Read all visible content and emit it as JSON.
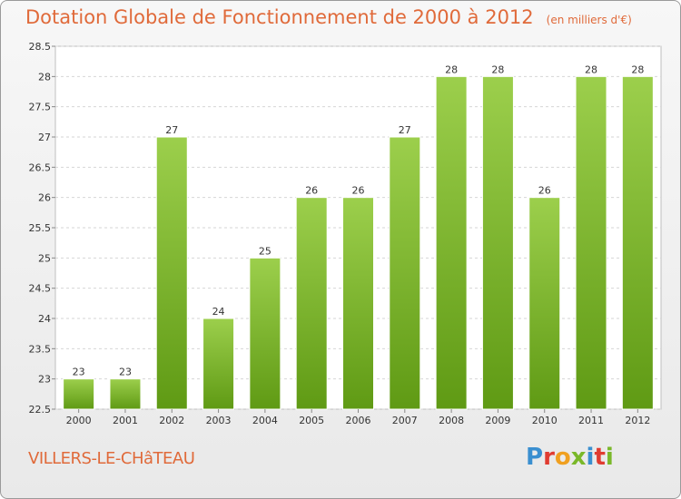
{
  "header": {
    "title": "Dotation Globale de Fonctionnement de 2000 à 2012",
    "unit": "(en milliers d'€)"
  },
  "footer": {
    "commune": "VILLERS-LE-CHâTEAU",
    "logo_text": "Proxiti",
    "logo_colors": [
      "#3a8fd0",
      "#e03c31",
      "#f0a020",
      "#7ab829",
      "#3a8fd0",
      "#e03c31",
      "#7ab829"
    ]
  },
  "chart_data": {
    "type": "bar",
    "categories": [
      "2000",
      "2001",
      "2002",
      "2003",
      "2004",
      "2005",
      "2006",
      "2007",
      "2008",
      "2009",
      "2010",
      "2011",
      "2012"
    ],
    "values": [
      23,
      23,
      27,
      24,
      25,
      26,
      26,
      27,
      28,
      28,
      26,
      28,
      28
    ],
    "data_labels": [
      "23",
      "23",
      "27",
      "24",
      "25",
      "26",
      "26",
      "27",
      "28",
      "28",
      "26",
      "28",
      "28"
    ],
    "ylim": [
      22.5,
      28.5
    ],
    "yticks": [
      22.5,
      23,
      23.5,
      24,
      24.5,
      25,
      25.5,
      26,
      26.5,
      27,
      27.5,
      28,
      28.5
    ],
    "ytick_labels": [
      "22.5",
      "23",
      "23.5",
      "24",
      "24.5",
      "25",
      "25.5",
      "26",
      "26.5",
      "27",
      "27.5",
      "28",
      "28.5"
    ],
    "grid": true,
    "bar_color_top": "#9ccf4c",
    "bar_color_bottom": "#5f9a14"
  }
}
